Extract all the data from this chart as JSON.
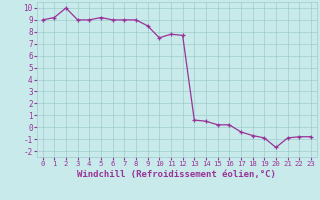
{
  "x": [
    0,
    1,
    2,
    3,
    4,
    5,
    6,
    7,
    8,
    9,
    10,
    11,
    12,
    13,
    14,
    15,
    16,
    17,
    18,
    19,
    20,
    21,
    22,
    23
  ],
  "y": [
    9,
    9.2,
    10,
    9,
    9,
    9.2,
    9,
    9,
    9,
    8.5,
    7.5,
    7.8,
    7.7,
    0.6,
    0.5,
    0.2,
    0.2,
    -0.4,
    -0.7,
    -0.9,
    -1.7,
    -0.9,
    -0.8,
    -0.8
  ],
  "line_color": "#993399",
  "marker_color": "#993399",
  "bg_color": "#c8eaea",
  "grid_color": "#a0cccc",
  "xlabel": "Windchill (Refroidissement éolien,°C)",
  "xlim": [
    -0.5,
    23.5
  ],
  "ylim": [
    -2.5,
    10.5
  ],
  "yticks": [
    -2,
    -1,
    0,
    1,
    2,
    3,
    4,
    5,
    6,
    7,
    8,
    9,
    10
  ],
  "xticks": [
    0,
    1,
    2,
    3,
    4,
    5,
    6,
    7,
    8,
    9,
    10,
    11,
    12,
    13,
    14,
    15,
    16,
    17,
    18,
    19,
    20,
    21,
    22,
    23
  ]
}
